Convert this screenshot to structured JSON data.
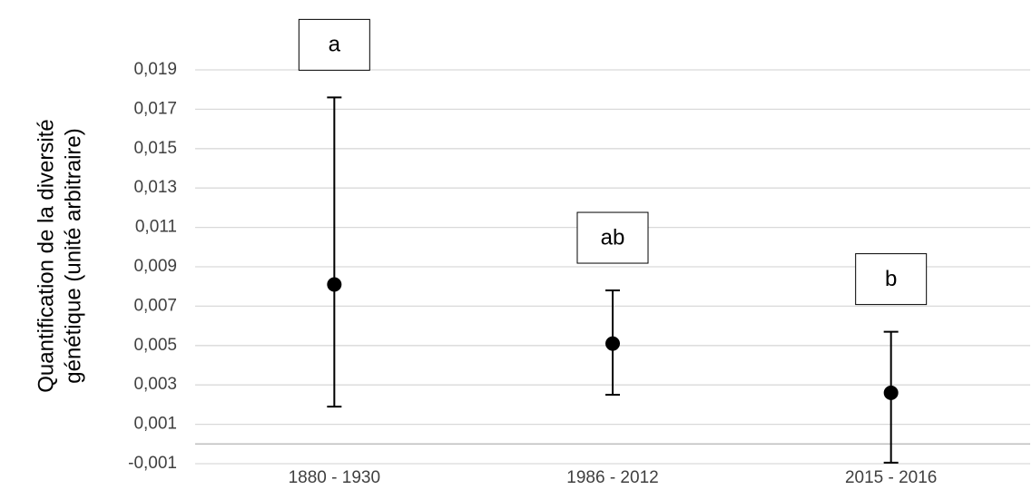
{
  "chart_data": {
    "type": "errorbar",
    "y_label": [
      "Quantification de la diversité",
      "génétique (unité arbitraire)"
    ],
    "categories": [
      "1880 - 1930",
      "1986 - 2012",
      "2015 - 2016"
    ],
    "values": [
      0.0081,
      0.0051,
      0.0026
    ],
    "lower": [
      0.0019,
      0.0025,
      -0.00095
    ],
    "upper": [
      0.0176,
      0.0078,
      0.0057
    ],
    "group_labels": [
      "a",
      "ab",
      "b"
    ],
    "color": "#000000",
    "ylim": [
      -0.001,
      0.019
    ],
    "yticks": [
      {
        "value": -0.001,
        "label": "-0,001"
      },
      {
        "value": 0.001,
        "label": "0,001"
      },
      {
        "value": 0.003,
        "label": "0,003"
      },
      {
        "value": 0.005,
        "label": "0,005"
      },
      {
        "value": 0.007,
        "label": "0,007"
      },
      {
        "value": 0.009,
        "label": "0,009"
      },
      {
        "value": 0.011,
        "label": "0,011"
      },
      {
        "value": 0.013,
        "label": "0,013"
      },
      {
        "value": 0.015,
        "label": "0,015"
      },
      {
        "value": 0.017,
        "label": "0,017"
      },
      {
        "value": 0.019,
        "label": "0,019"
      }
    ],
    "grid": true
  }
}
